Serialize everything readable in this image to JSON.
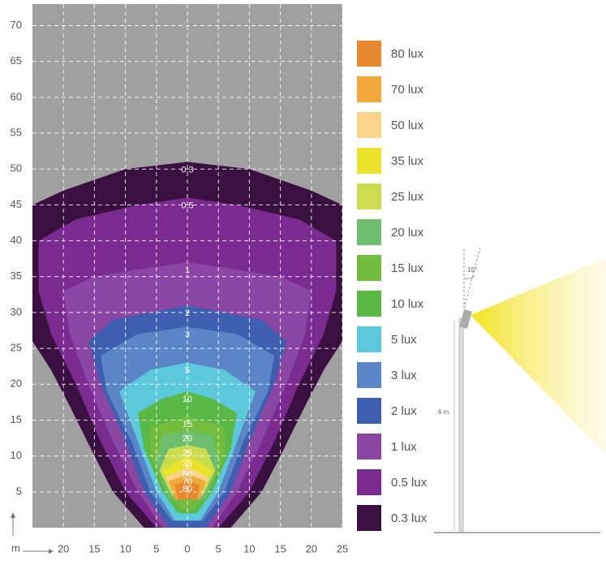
{
  "chart_data": {
    "type": "contour",
    "x_axis_label": "m",
    "xlim": [
      -25,
      25
    ],
    "ylim": [
      0,
      73
    ],
    "xticks": [
      {
        "value": -20,
        "label": "20"
      },
      {
        "value": -15,
        "label": "15"
      },
      {
        "value": -10,
        "label": "10"
      },
      {
        "value": -5,
        "label": "5"
      },
      0,
      5,
      10,
      15,
      20,
      25
    ],
    "yticks": [
      5,
      10,
      15,
      20,
      25,
      30,
      35,
      40,
      45,
      50,
      55,
      60,
      65,
      70
    ],
    "grid": true,
    "mirrored": true,
    "series": [
      {
        "name": "80 lux",
        "level": 80,
        "color": "#e8872e",
        "x": [
          1.5,
          2,
          0
        ],
        "y": [
          4,
          6,
          6.5
        ]
      },
      {
        "name": "70 lux",
        "level": 70,
        "color": "#f2a93b",
        "x": [
          2,
          3,
          0
        ],
        "y": [
          4,
          6.5,
          7.5
        ]
      },
      {
        "name": "50 lux",
        "level": 50,
        "color": "#f9d48a",
        "x": [
          2,
          3.5,
          0
        ],
        "y": [
          4.5,
          7,
          8.5
        ]
      },
      {
        "name": "35 lux",
        "level": 35,
        "color": "#ebe22a",
        "x": [
          2,
          4,
          0
        ],
        "y": [
          5,
          8,
          10
        ]
      },
      {
        "name": "25 lux",
        "level": 25,
        "color": "#cbdc4e",
        "x": [
          2.5,
          4.5,
          3,
          0
        ],
        "y": [
          4.5,
          8,
          11,
          11.5
        ]
      },
      {
        "name": "20 lux",
        "level": 20,
        "color": "#6dbf6f",
        "x": [
          3,
          5,
          4,
          0
        ],
        "y": [
          4,
          9,
          13,
          13.5
        ]
      },
      {
        "name": "15 lux",
        "level": 15,
        "color": "#72bd3e",
        "x": [
          1,
          3.5,
          6,
          6,
          0
        ],
        "y": [
          2.5,
          5,
          10,
          14,
          15.5
        ]
      },
      {
        "name": "10 lux",
        "level": 10,
        "color": "#5ab844",
        "x": [
          1.5,
          4,
          7,
          8,
          4,
          0
        ],
        "y": [
          2,
          5,
          11,
          16,
          18,
          19
        ]
      },
      {
        "name": "5 lux",
        "level": 5,
        "color": "#5cc8dc",
        "x": [
          2,
          5,
          8,
          11,
          6,
          0
        ],
        "y": [
          1,
          5,
          12,
          19,
          22,
          23
        ]
      },
      {
        "name": "3 lux",
        "level": 3,
        "color": "#5a86c8",
        "x": [
          2.5,
          6,
          9,
          13,
          14,
          8,
          0
        ],
        "y": [
          1,
          5,
          12,
          19,
          24,
          27,
          28
        ]
      },
      {
        "name": "2 lux",
        "level": 2,
        "color": "#3e5fb0",
        "x": [
          3,
          7,
          10,
          14,
          16,
          12,
          6,
          0
        ],
        "y": [
          0,
          5,
          12,
          20,
          26,
          29,
          30,
          31
        ]
      },
      {
        "name": "1 lux",
        "level": 1,
        "color": "#8b45a3",
        "x": [
          4,
          8,
          12,
          16,
          19,
          20,
          15,
          8,
          0
        ],
        "y": [
          0,
          5,
          12,
          20,
          27,
          33,
          35,
          36,
          37
        ]
      },
      {
        "name": "0.5 lux",
        "level": 0.5,
        "color": "#7a2b90",
        "x": [
          5,
          10,
          14,
          18,
          22,
          24,
          24,
          18,
          8,
          0
        ],
        "y": [
          0,
          5,
          12,
          20,
          27,
          33,
          40,
          43,
          45,
          46
        ]
      },
      {
        "name": "0.3 lux",
        "level": 0.3,
        "color": "#3a1040",
        "x": [
          7,
          12,
          15,
          19,
          22,
          25,
          25,
          20,
          10,
          0
        ],
        "y": [
          0,
          5,
          10,
          17,
          22,
          26,
          45,
          47,
          50,
          51
        ]
      }
    ]
  },
  "illustration": {
    "angle_label": "15°",
    "height_label": "6 m"
  }
}
